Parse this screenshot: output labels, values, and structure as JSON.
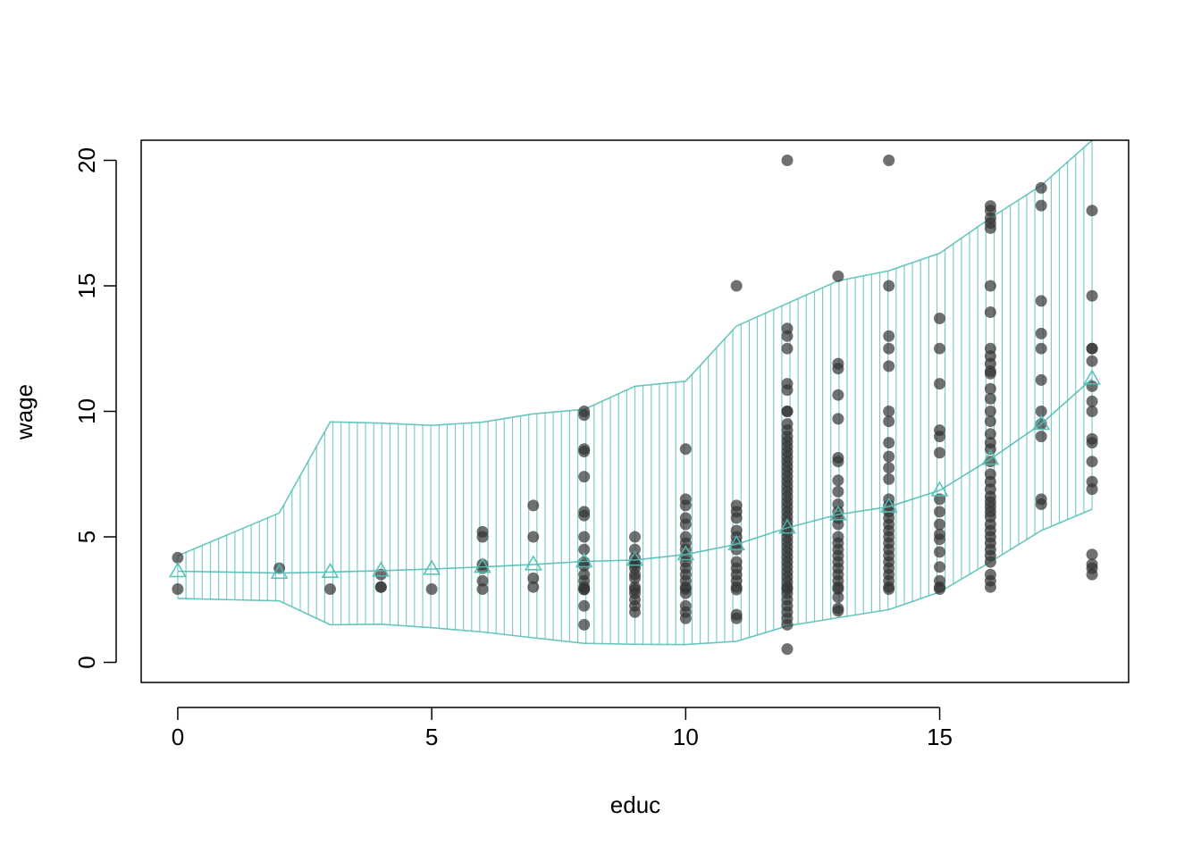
{
  "colors": {
    "band": "#4fbdb5",
    "points": "#333333",
    "axis": "#000000"
  },
  "chart_data": {
    "type": "scatter",
    "title": "",
    "xlabel": "educ",
    "ylabel": "wage",
    "xlim": [
      -0.72,
      18.72
    ],
    "ylim": [
      -0.8,
      20.8
    ],
    "x_ticks": [
      0,
      5,
      10,
      15
    ],
    "y_ticks": [
      0,
      5,
      10,
      15,
      20
    ],
    "grid": false,
    "legend": "none",
    "points": [
      [
        0,
        4.17
      ],
      [
        0,
        2.92
      ],
      [
        2,
        3.75
      ],
      [
        3,
        2.92
      ],
      [
        4,
        3.0
      ],
      [
        4,
        3.0
      ],
      [
        4,
        3.5
      ],
      [
        5,
        2.92
      ],
      [
        6,
        5.2
      ],
      [
        6,
        5.0
      ],
      [
        6,
        3.9
      ],
      [
        6,
        3.75
      ],
      [
        6,
        3.25
      ],
      [
        6,
        2.92
      ],
      [
        7,
        6.25
      ],
      [
        7,
        5.0
      ],
      [
        7,
        3.35
      ],
      [
        7,
        3.0
      ],
      [
        8,
        10.0
      ],
      [
        8,
        9.85
      ],
      [
        8,
        8.5
      ],
      [
        8,
        8.4
      ],
      [
        8,
        7.4
      ],
      [
        8,
        6.0
      ],
      [
        8,
        5.85
      ],
      [
        8,
        5.0
      ],
      [
        8,
        4.5
      ],
      [
        8,
        4.0
      ],
      [
        8,
        3.85
      ],
      [
        8,
        3.5
      ],
      [
        8,
        3.25
      ],
      [
        8,
        3.0
      ],
      [
        8,
        2.92
      ],
      [
        8,
        2.9
      ],
      [
        8,
        2.25
      ],
      [
        8,
        1.5
      ],
      [
        9,
        5.0
      ],
      [
        9,
        4.5
      ],
      [
        9,
        4.15
      ],
      [
        9,
        4.0
      ],
      [
        9,
        3.9
      ],
      [
        9,
        3.75
      ],
      [
        9,
        3.5
      ],
      [
        9,
        3.35
      ],
      [
        9,
        3.0
      ],
      [
        9,
        2.9
      ],
      [
        9,
        2.75
      ],
      [
        9,
        2.5
      ],
      [
        9,
        2.25
      ],
      [
        9,
        2.0
      ],
      [
        10,
        8.5
      ],
      [
        10,
        6.5
      ],
      [
        10,
        6.25
      ],
      [
        10,
        5.75
      ],
      [
        10,
        5.5
      ],
      [
        10,
        5.0
      ],
      [
        10,
        4.75
      ],
      [
        10,
        4.5
      ],
      [
        10,
        4.25
      ],
      [
        10,
        4.0
      ],
      [
        10,
        3.75
      ],
      [
        10,
        3.5
      ],
      [
        10,
        3.25
      ],
      [
        10,
        3.0
      ],
      [
        10,
        2.92
      ],
      [
        10,
        2.75
      ],
      [
        10,
        2.25
      ],
      [
        10,
        2.0
      ],
      [
        10,
        1.75
      ],
      [
        11,
        15.0
      ],
      [
        11,
        6.25
      ],
      [
        11,
        6.0
      ],
      [
        11,
        5.75
      ],
      [
        11,
        5.25
      ],
      [
        11,
        5.0
      ],
      [
        11,
        4.75
      ],
      [
        11,
        4.5
      ],
      [
        11,
        4.0
      ],
      [
        11,
        3.75
      ],
      [
        11,
        3.5
      ],
      [
        11,
        3.25
      ],
      [
        11,
        3.0
      ],
      [
        11,
        2.9
      ],
      [
        11,
        1.9
      ],
      [
        11,
        1.75
      ],
      [
        12,
        20.0
      ],
      [
        12,
        13.3
      ],
      [
        12,
        13.0
      ],
      [
        12,
        12.5
      ],
      [
        12,
        11.1
      ],
      [
        12,
        10.85
      ],
      [
        12,
        10.0
      ],
      [
        12,
        10.0
      ],
      [
        12,
        9.5
      ],
      [
        12,
        9.25
      ],
      [
        12,
        9.0
      ],
      [
        12,
        8.8
      ],
      [
        12,
        8.6
      ],
      [
        12,
        8.4
      ],
      [
        12,
        8.2
      ],
      [
        12,
        8.0
      ],
      [
        12,
        7.8
      ],
      [
        12,
        7.6
      ],
      [
        12,
        7.4
      ],
      [
        12,
        7.2
      ],
      [
        12,
        7.0
      ],
      [
        12,
        6.8
      ],
      [
        12,
        6.6
      ],
      [
        12,
        6.4
      ],
      [
        12,
        6.2
      ],
      [
        12,
        6.0
      ],
      [
        12,
        5.8
      ],
      [
        12,
        5.6
      ],
      [
        12,
        5.4
      ],
      [
        12,
        5.2
      ],
      [
        12,
        5.0
      ],
      [
        12,
        4.8
      ],
      [
        12,
        4.6
      ],
      [
        12,
        4.4
      ],
      [
        12,
        4.2
      ],
      [
        12,
        4.0
      ],
      [
        12,
        3.8
      ],
      [
        12,
        3.6
      ],
      [
        12,
        3.4
      ],
      [
        12,
        3.2
      ],
      [
        12,
        3.0
      ],
      [
        12,
        2.92
      ],
      [
        12,
        2.75
      ],
      [
        12,
        2.5
      ],
      [
        12,
        2.25
      ],
      [
        12,
        2.0
      ],
      [
        12,
        1.75
      ],
      [
        12,
        1.5
      ],
      [
        12,
        0.53
      ],
      [
        13,
        15.38
      ],
      [
        13,
        11.9
      ],
      [
        13,
        11.7
      ],
      [
        13,
        10.65
      ],
      [
        13,
        9.7
      ],
      [
        13,
        8.15
      ],
      [
        13,
        8.0
      ],
      [
        13,
        7.25
      ],
      [
        13,
        6.8
      ],
      [
        13,
        6.3
      ],
      [
        13,
        6.0
      ],
      [
        13,
        5.75
      ],
      [
        13,
        5.5
      ],
      [
        13,
        5.0
      ],
      [
        13,
        4.75
      ],
      [
        13,
        4.5
      ],
      [
        13,
        4.25
      ],
      [
        13,
        4.0
      ],
      [
        13,
        3.75
      ],
      [
        13,
        3.5
      ],
      [
        13,
        3.25
      ],
      [
        13,
        3.0
      ],
      [
        13,
        2.92
      ],
      [
        13,
        2.6
      ],
      [
        13,
        2.15
      ],
      [
        13,
        2.05
      ],
      [
        14,
        20.0
      ],
      [
        14,
        15.0
      ],
      [
        14,
        13.0
      ],
      [
        14,
        12.5
      ],
      [
        14,
        11.8
      ],
      [
        14,
        10.0
      ],
      [
        14,
        9.6
      ],
      [
        14,
        8.75
      ],
      [
        14,
        8.2
      ],
      [
        14,
        7.75
      ],
      [
        14,
        7.3
      ],
      [
        14,
        6.5
      ],
      [
        14,
        6.25
      ],
      [
        14,
        6.0
      ],
      [
        14,
        5.75
      ],
      [
        14,
        5.5
      ],
      [
        14,
        5.25
      ],
      [
        14,
        5.0
      ],
      [
        14,
        4.75
      ],
      [
        14,
        4.5
      ],
      [
        14,
        4.25
      ],
      [
        14,
        4.0
      ],
      [
        14,
        3.75
      ],
      [
        14,
        3.5
      ],
      [
        14,
        3.25
      ],
      [
        14,
        3.0
      ],
      [
        14,
        2.92
      ],
      [
        15,
        13.7
      ],
      [
        15,
        12.5
      ],
      [
        15,
        11.1
      ],
      [
        15,
        9.25
      ],
      [
        15,
        9.0
      ],
      [
        15,
        8.35
      ],
      [
        15,
        6.5
      ],
      [
        15,
        6.0
      ],
      [
        15,
        5.5
      ],
      [
        15,
        5.1
      ],
      [
        15,
        4.9
      ],
      [
        15,
        4.4
      ],
      [
        15,
        3.8
      ],
      [
        15,
        3.25
      ],
      [
        15,
        3.0
      ],
      [
        15,
        2.92
      ],
      [
        16,
        18.18
      ],
      [
        16,
        18.0
      ],
      [
        16,
        17.7
      ],
      [
        16,
        17.5
      ],
      [
        16,
        17.3
      ],
      [
        16,
        15.0
      ],
      [
        16,
        13.95
      ],
      [
        16,
        12.5
      ],
      [
        16,
        12.2
      ],
      [
        16,
        11.9
      ],
      [
        16,
        11.6
      ],
      [
        16,
        11.5
      ],
      [
        16,
        10.9
      ],
      [
        16,
        10.5
      ],
      [
        16,
        10.0
      ],
      [
        16,
        9.6
      ],
      [
        16,
        9.1
      ],
      [
        16,
        8.75
      ],
      [
        16,
        8.5
      ],
      [
        16,
        8.0
      ],
      [
        16,
        7.5
      ],
      [
        16,
        7.2
      ],
      [
        16,
        6.9
      ],
      [
        16,
        6.6
      ],
      [
        16,
        6.4
      ],
      [
        16,
        6.2
      ],
      [
        16,
        6.0
      ],
      [
        16,
        5.8
      ],
      [
        16,
        5.5
      ],
      [
        16,
        5.25
      ],
      [
        16,
        5.0
      ],
      [
        16,
        4.75
      ],
      [
        16,
        4.5
      ],
      [
        16,
        4.25
      ],
      [
        16,
        4.0
      ],
      [
        16,
        3.5
      ],
      [
        16,
        3.25
      ],
      [
        16,
        3.0
      ],
      [
        17,
        18.9
      ],
      [
        17,
        18.2
      ],
      [
        17,
        14.4
      ],
      [
        17,
        13.1
      ],
      [
        17,
        12.5
      ],
      [
        17,
        11.25
      ],
      [
        17,
        10.0
      ],
      [
        17,
        9.5
      ],
      [
        17,
        9.0
      ],
      [
        17,
        6.5
      ],
      [
        17,
        6.3
      ],
      [
        18,
        18.0
      ],
      [
        18,
        14.6
      ],
      [
        18,
        12.5
      ],
      [
        18,
        12.5
      ],
      [
        18,
        12.0
      ],
      [
        18,
        11.0
      ],
      [
        18,
        10.4
      ],
      [
        18,
        10.0
      ],
      [
        18,
        8.9
      ],
      [
        18,
        8.75
      ],
      [
        18,
        8.0
      ],
      [
        18,
        7.2
      ],
      [
        18,
        6.9
      ],
      [
        18,
        4.3
      ],
      [
        18,
        3.9
      ],
      [
        18,
        3.75
      ],
      [
        18,
        3.5
      ]
    ],
    "mean_line": {
      "x": [
        0,
        2,
        3,
        4,
        5,
        6,
        7,
        8,
        9,
        10,
        11,
        12,
        13,
        14,
        15,
        16,
        17,
        18
      ],
      "y": [
        3.63,
        3.56,
        3.6,
        3.65,
        3.72,
        3.8,
        3.9,
        4.02,
        4.08,
        4.3,
        4.7,
        5.36,
        5.89,
        6.2,
        6.85,
        8.1,
        9.5,
        11.3
      ]
    },
    "band": {
      "x": [
        0,
        2,
        3,
        4,
        5,
        6,
        7,
        8,
        9,
        10,
        11,
        12,
        13,
        14,
        15,
        16,
        17,
        18
      ],
      "upper": [
        4.25,
        5.95,
        9.58,
        9.53,
        9.44,
        9.57,
        9.9,
        10.08,
        11.0,
        11.2,
        13.4,
        14.3,
        15.2,
        15.6,
        16.3,
        17.7,
        19.0,
        20.8
      ],
      "lower": [
        2.55,
        2.45,
        1.5,
        1.52,
        1.38,
        1.21,
        0.98,
        0.76,
        0.72,
        0.71,
        0.84,
        1.45,
        1.78,
        2.1,
        2.8,
        4.0,
        5.25,
        6.1
      ]
    }
  }
}
